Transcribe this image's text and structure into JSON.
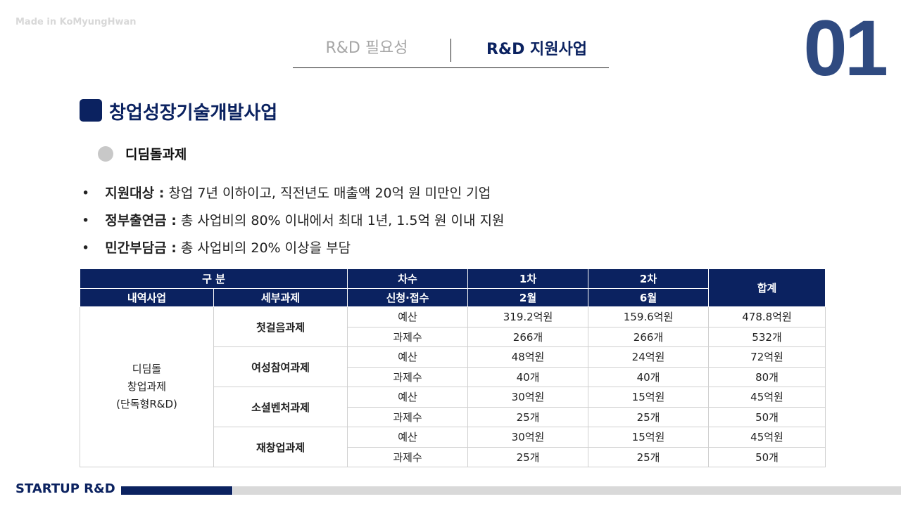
{
  "watermark": "Made in KoMyungHwan",
  "tabs": [
    "R&D 필요성",
    "R&D 지원사업"
  ],
  "page_number": "01",
  "section_title": "창업성장기술개발사업",
  "subsection_title": "디딤돌과제",
  "bullets": [
    {
      "label": "지원대상 :",
      "text": "창업 7년 이하이고, 직전년도 매출액 20억 원 미만인 기업"
    },
    {
      "label": "정부출연금 :",
      "text": "총 사업비의 80% 이내에서 최대 1년, 1.5억 원 이내 지원"
    },
    {
      "label": "민간부담금 :",
      "text": "총 사업비의 20% 이상을 부담"
    }
  ],
  "table": {
    "header": {
      "group": "구 분",
      "round": "차수",
      "first": "1차",
      "second": "2차",
      "total": "합계",
      "program": "내역사업",
      "subtask": "세부과제",
      "apply": "신청·접수",
      "first_month": "2월",
      "second_month": "6월"
    },
    "program": [
      "디딤돌",
      "창업과제",
      "(단독형R&D)"
    ],
    "rows": [
      {
        "task": "첫걸음과제",
        "items": [
          [
            "예산",
            "319.2억원",
            "159.6억원",
            "478.8억원"
          ],
          [
            "과제수",
            "266개",
            "266개",
            "532개"
          ]
        ]
      },
      {
        "task": "여성참여과제",
        "items": [
          [
            "예산",
            "48억원",
            "24억원",
            "72억원"
          ],
          [
            "과제수",
            "40개",
            "40개",
            "80개"
          ]
        ]
      },
      {
        "task": "소셜벤처과제",
        "items": [
          [
            "예산",
            "30억원",
            "15억원",
            "45억원"
          ],
          [
            "과제수",
            "25개",
            "25개",
            "50개"
          ]
        ]
      },
      {
        "task": "재창업과제",
        "items": [
          [
            "예산",
            "30억원",
            "15억원",
            "45억원"
          ],
          [
            "과제수",
            "25개",
            "25개",
            "50개"
          ]
        ]
      }
    ]
  },
  "footer": "STARTUP R&D"
}
